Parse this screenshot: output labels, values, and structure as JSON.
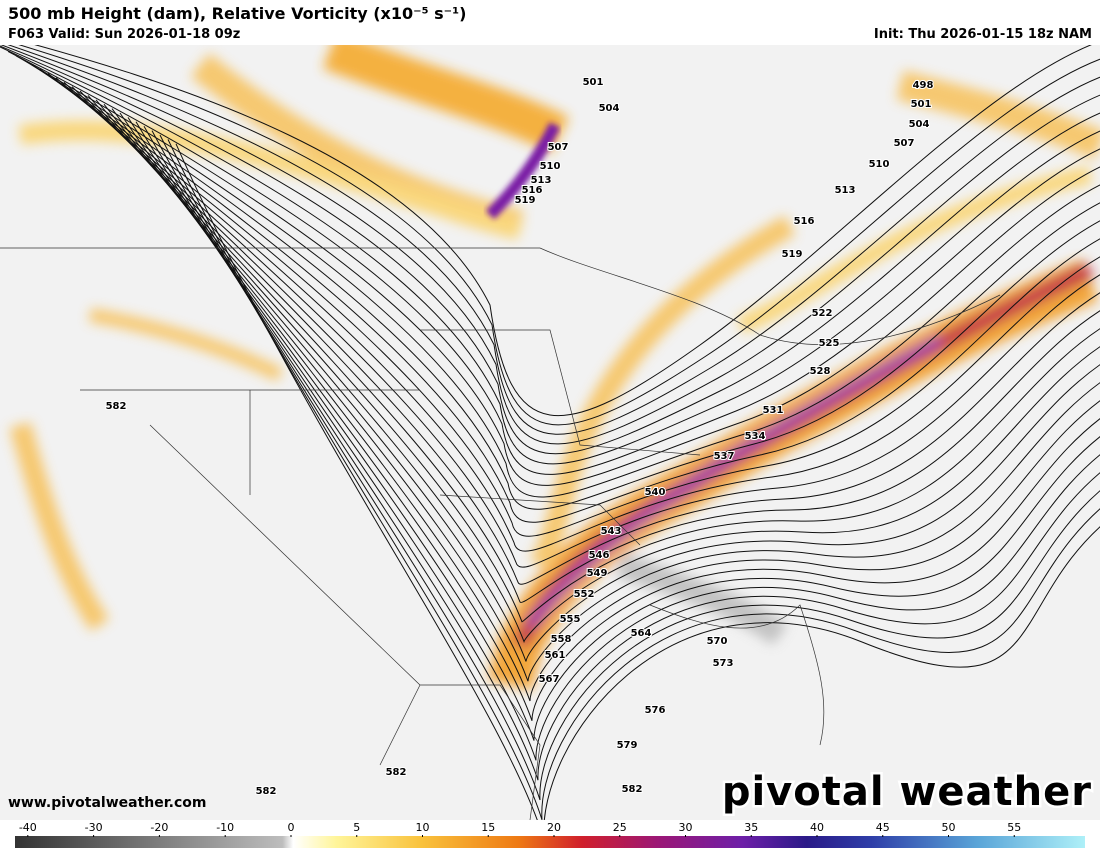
{
  "header": {
    "title": "500 mb Height (dam), Relative Vorticity (x10⁻⁵ s⁻¹)",
    "valid": "F063 Valid: Sun 2026-01-18 09z",
    "init": "Init: Thu 2026-01-15 18z NAM"
  },
  "contour_labels": [
    498,
    501,
    501,
    504,
    504,
    507,
    507,
    510,
    510,
    513,
    513,
    516,
    516,
    519,
    519,
    522,
    525,
    528,
    531,
    534,
    537,
    540,
    543,
    546,
    549,
    552,
    555,
    558,
    561,
    564,
    567,
    570,
    573,
    576,
    579,
    582,
    582,
    582,
    582
  ],
  "colorbar": {
    "ticks": [
      -40,
      -30,
      -20,
      -10,
      0,
      5,
      10,
      15,
      20,
      25,
      30,
      35,
      40,
      45,
      50,
      55
    ]
  },
  "footer": {
    "website": "www.pivotalweather.com",
    "logo": "pivotal weather"
  }
}
